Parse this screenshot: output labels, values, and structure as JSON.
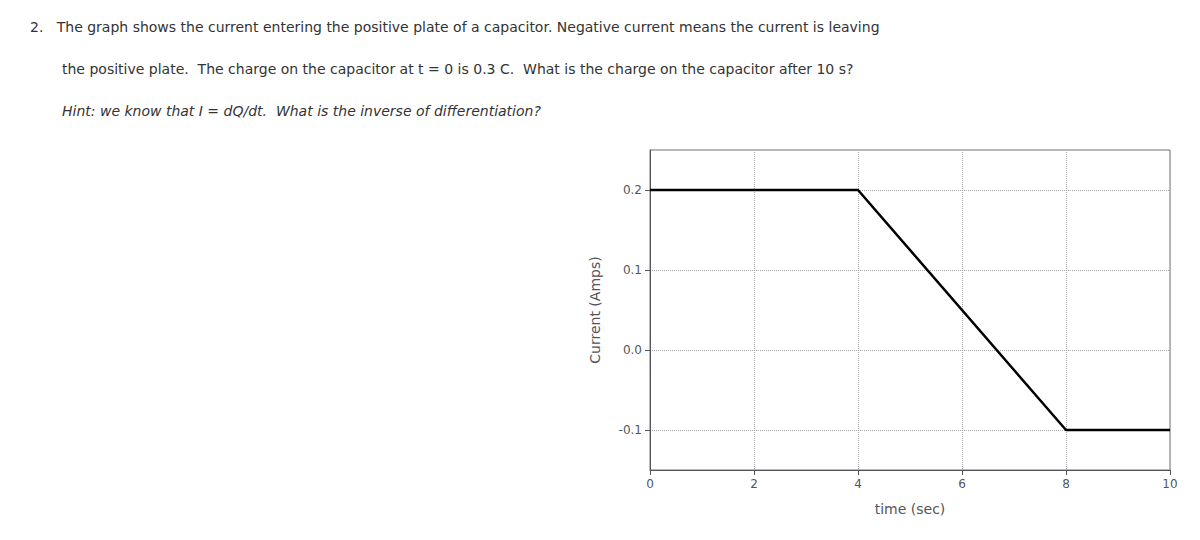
{
  "chart_data": {
    "type": "line",
    "annotations": [
      "2.   The graph shows the current entering the positive plate of a capacitor. Negative current means the current is leaving",
      "the positive plate.  The charge on the capacitor at t = 0 is 0.3 C.  What is the charge on the capacitor after 10 s?",
      "Hint: we know that I = dQ/dt.  What is the inverse of differentiation?"
    ],
    "x": [
      0,
      4,
      8,
      8,
      10
    ],
    "values": [
      0.2,
      0.2,
      -0.1,
      -0.1,
      -0.1
    ],
    "color": "#000000",
    "xlim": [
      0,
      10
    ],
    "ylim": [
      -0.15,
      0.25
    ],
    "xticks": [
      0,
      2,
      4,
      6,
      8,
      10
    ],
    "yticks": [
      -0.1,
      {
        "value": 0,
        "label": "0.0"
      },
      0.1,
      0.2
    ],
    "xlabel": "time (sec)",
    "ylabel": "Current (Amps)",
    "grid": true
  }
}
